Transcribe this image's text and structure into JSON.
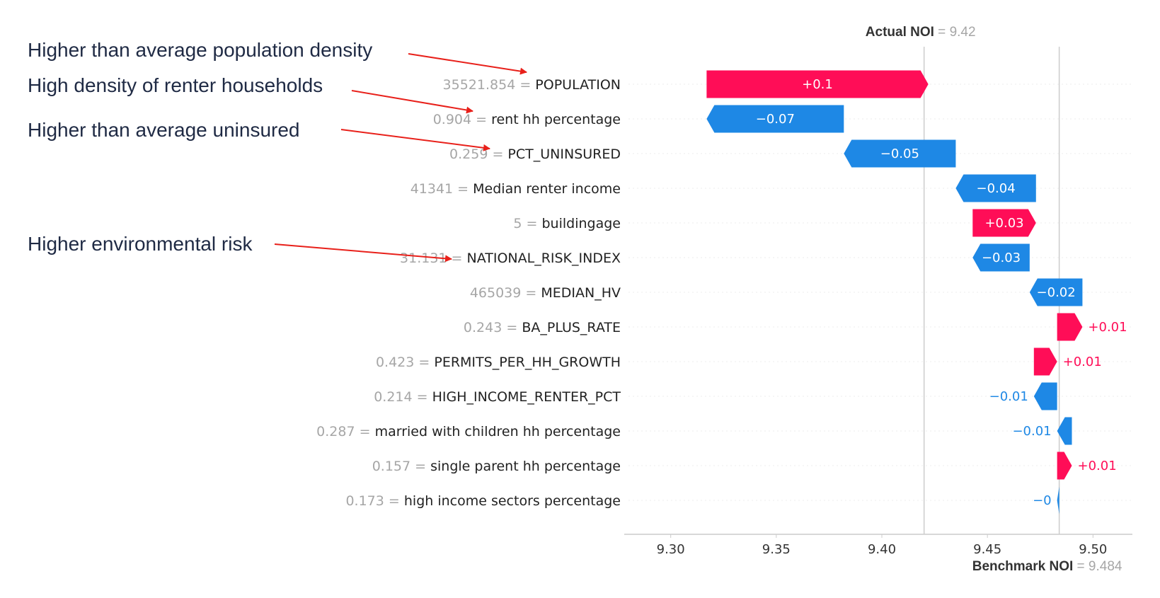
{
  "chart_data": {
    "type": "waterfall",
    "xlim": [
      9.28,
      9.52
    ],
    "xticks": [
      {
        "value": 9.3,
        "label": "9.30"
      },
      {
        "value": 9.35,
        "label": "9.35"
      },
      {
        "value": 9.4,
        "label": "9.40"
      },
      {
        "value": 9.45,
        "label": "9.45"
      },
      {
        "value": 9.5,
        "label": "9.50"
      }
    ],
    "benchmark": {
      "name": "Benchmark NOI",
      "eq": " = ",
      "value": 9.484,
      "value_label": "9.484"
    },
    "actual": {
      "name": "Actual NOI",
      "eq": " = ",
      "value": 9.42,
      "value_label": "9.42"
    },
    "features": [
      {
        "value": "35521.854",
        "name": "POPULATION",
        "contribution": 0.105,
        "label": "+0.1"
      },
      {
        "value": "0.904",
        "name": "rent hh percentage",
        "contribution": -0.065,
        "label": "−0.07"
      },
      {
        "value": "0.259",
        "name": "PCT_UNINSURED",
        "contribution": -0.053,
        "label": "−0.05"
      },
      {
        "value": "41341",
        "name": "Median renter income",
        "contribution": -0.038,
        "label": "−0.04"
      },
      {
        "value": "5",
        "name": "buildingage",
        "contribution": 0.03,
        "label": "+0.03"
      },
      {
        "value": "31.131",
        "name": "NATIONAL_RISK_INDEX",
        "contribution": -0.027,
        "label": "−0.03"
      },
      {
        "value": "465039",
        "name": "MEDIAN_HV",
        "contribution": -0.025,
        "label": "−0.02"
      },
      {
        "value": "0.243",
        "name": "BA_PLUS_RATE",
        "contribution": 0.012,
        "label": "+0.01"
      },
      {
        "value": "0.423",
        "name": "PERMITS_PER_HH_GROWTH",
        "contribution": 0.011,
        "label": "+0.01"
      },
      {
        "value": "0.214",
        "name": "HIGH_INCOME_RENTER_PCT",
        "contribution": -0.011,
        "label": "−0.01"
      },
      {
        "value": "0.287",
        "name": "married with children hh percentage",
        "contribution": -0.007,
        "label": "−0.01"
      },
      {
        "value": "0.157",
        "name": "single parent hh percentage",
        "contribution": 0.007,
        "label": "+0.01"
      },
      {
        "value": "0.173",
        "name": "high income sectors percentage",
        "contribution": -0.001,
        "label": "−0"
      }
    ],
    "colors": {
      "positive": "#ff0d57",
      "negative": "#1e88e5",
      "reference_line": "#cccccc",
      "arrow": "#e8201a"
    }
  },
  "annotations": [
    {
      "text": "Higher than average population density",
      "target_feature": 0
    },
    {
      "text": "High density of renter households",
      "target_feature": 1
    },
    {
      "text": "Higher than average uninsured",
      "target_feature": 2
    },
    {
      "text": "Higher environmental risk",
      "target_feature": 5
    }
  ]
}
